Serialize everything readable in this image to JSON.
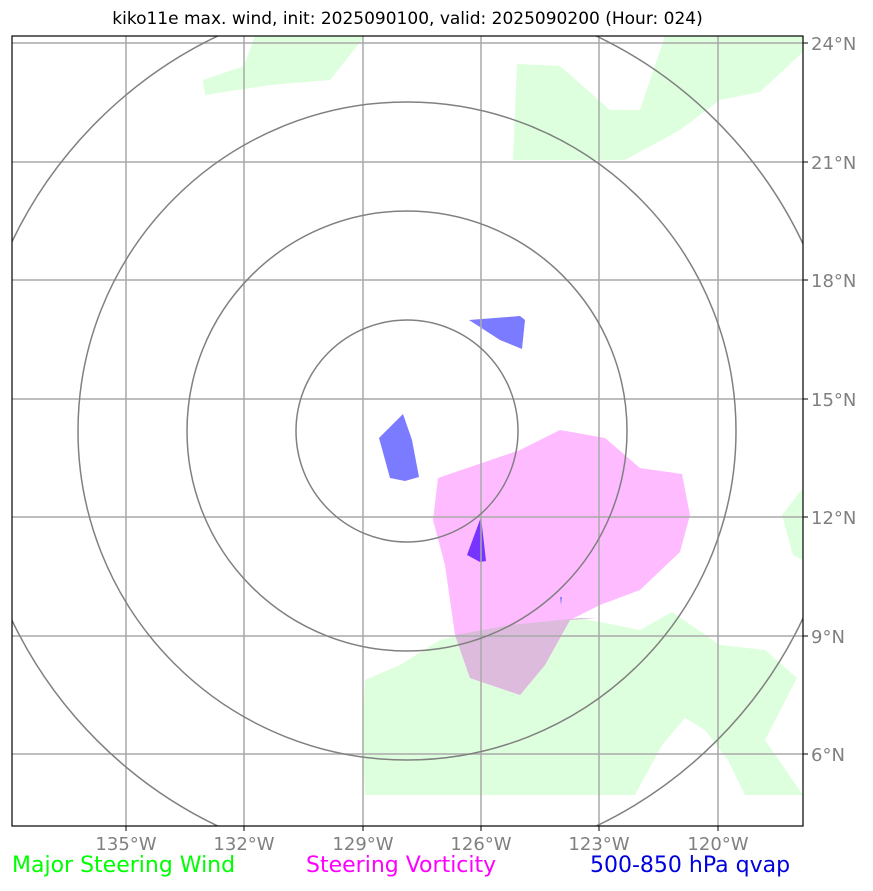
{
  "title": "kiko11e max. wind, init: 2025090100, valid: 2025090200 (Hour: 024)",
  "map": {
    "lat_ticks": [
      "24°N",
      "21°N",
      "18°N",
      "15°N",
      "12°N",
      "9°N",
      "6°N"
    ],
    "lon_ticks": [
      "135°W",
      "132°W",
      "129°W",
      "126°W",
      "123°W",
      "120°W"
    ],
    "grid": true,
    "range_rings": 4,
    "colors": {
      "steering_wind": "#ddffdd",
      "steering_vorticity": "#ffbbff",
      "qvap": "#7b7bff",
      "grid": "#a9a9a9",
      "rings": "#808080"
    }
  },
  "legend": {
    "wind": {
      "label": "Major Steering Wind",
      "color": "#00ff00"
    },
    "vorticity": {
      "label": "Steering Vorticity",
      "color": "#ff00ff"
    },
    "qvap": {
      "label": "500-850 hPa qvap",
      "color": "#0000dd"
    }
  }
}
